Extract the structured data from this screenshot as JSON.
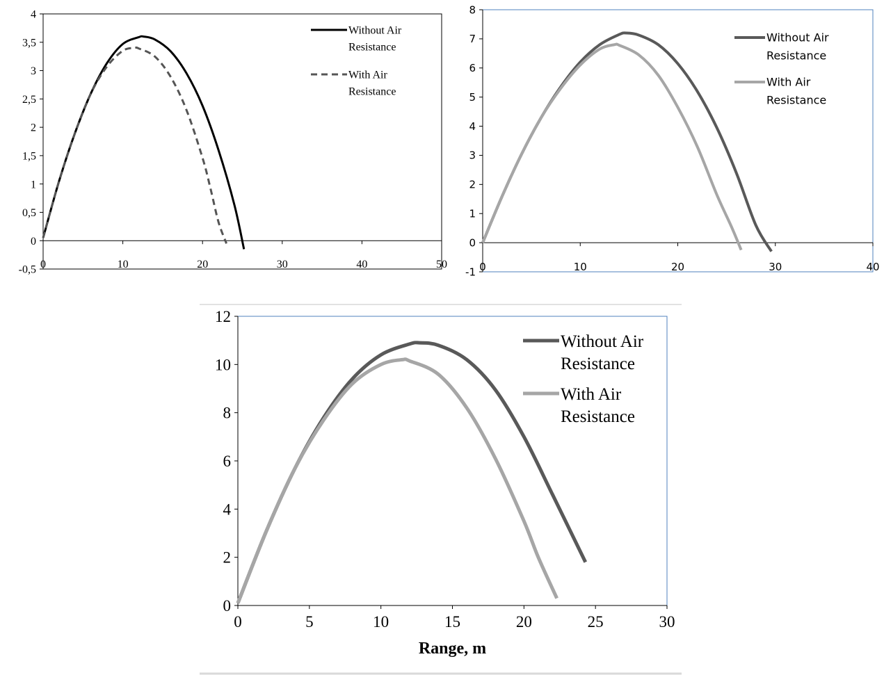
{
  "chart_data": [
    {
      "type": "line",
      "title": "",
      "xlabel": "",
      "ylabel": "",
      "xlim": [
        0,
        50
      ],
      "ylim": [
        -0.5,
        4
      ],
      "x_ticks": [
        0,
        10,
        20,
        30,
        40,
        50
      ],
      "y_ticks": [
        -0.5,
        0,
        0.5,
        1,
        1.5,
        2,
        2.5,
        3,
        3.5,
        4
      ],
      "y_tick_labels": [
        "-0,5",
        "0",
        "0,5",
        "1",
        "1,5",
        "2",
        "2,5",
        "3",
        "3,5",
        "4"
      ],
      "grid": false,
      "legend_position": "top-right",
      "series": [
        {
          "name_lines": [
            "Without Air",
            "Resistance"
          ],
          "color": "#000000",
          "dashed": false,
          "x": [
            0,
            2,
            4,
            6,
            8,
            10,
            12,
            12.6,
            14,
            16,
            18,
            20,
            22,
            24,
            25.2
          ],
          "y": [
            0.05,
            1.05,
            1.9,
            2.6,
            3.13,
            3.47,
            3.59,
            3.6,
            3.55,
            3.34,
            2.95,
            2.38,
            1.6,
            0.63,
            -0.15
          ]
        },
        {
          "name_lines": [
            "With Air",
            "Resistance"
          ],
          "color": "#555555",
          "dashed": true,
          "x": [
            0,
            2,
            4,
            6,
            8,
            10,
            11.5,
            12,
            14,
            16,
            18,
            20,
            21,
            22,
            23
          ],
          "y": [
            0.05,
            1.05,
            1.9,
            2.6,
            3.07,
            3.35,
            3.4,
            3.39,
            3.25,
            2.89,
            2.3,
            1.46,
            0.92,
            0.33,
            -0.05
          ]
        }
      ]
    },
    {
      "type": "line",
      "title": "",
      "xlabel": "",
      "ylabel": "",
      "xlim": [
        0,
        40
      ],
      "ylim": [
        -1,
        8
      ],
      "x_ticks": [
        0,
        10,
        20,
        30,
        40
      ],
      "y_ticks": [
        -1,
        0,
        1,
        2,
        3,
        4,
        5,
        6,
        7,
        8
      ],
      "y_tick_labels": [
        "-1",
        "0",
        "1",
        "2",
        "3",
        "4",
        "5",
        "6",
        "7",
        "8"
      ],
      "grid": false,
      "legend_position": "top-right",
      "series": [
        {
          "name_lines": [
            "Without Air",
            "Resistance"
          ],
          "color": "#595959",
          "dashed": false,
          "x": [
            0,
            2,
            4,
            6,
            8,
            10,
            12,
            14,
            14.7,
            16,
            18,
            20,
            22,
            24,
            26,
            28,
            29.6
          ],
          "y": [
            0,
            1.6,
            3.05,
            4.3,
            5.35,
            6.2,
            6.8,
            7.15,
            7.2,
            7.13,
            6.8,
            6.15,
            5.2,
            3.95,
            2.4,
            0.6,
            -0.3
          ]
        },
        {
          "name_lines": [
            "With Air",
            "Resistance"
          ],
          "color": "#a6a6a6",
          "dashed": false,
          "x": [
            0,
            2,
            4,
            6,
            8,
            10,
            12,
            13.5,
            14,
            16,
            18,
            20,
            22,
            24,
            25.5,
            26.5
          ],
          "y": [
            0,
            1.6,
            3.05,
            4.3,
            5.3,
            6.1,
            6.65,
            6.8,
            6.78,
            6.45,
            5.75,
            4.65,
            3.3,
            1.65,
            0.55,
            -0.25
          ]
        }
      ]
    },
    {
      "type": "line",
      "title": "",
      "xlabel": "Range, m",
      "ylabel": "",
      "xlim": [
        0,
        30
      ],
      "ylim": [
        0,
        12
      ],
      "x_ticks": [
        0,
        5,
        10,
        15,
        20,
        25,
        30
      ],
      "y_ticks": [
        0,
        2,
        4,
        6,
        8,
        10,
        12
      ],
      "y_tick_labels": [
        "0",
        "2",
        "4",
        "6",
        "8",
        "10",
        "12"
      ],
      "grid": false,
      "legend_position": "top-right",
      "series": [
        {
          "name_lines": [
            "Without Air",
            "Resistance"
          ],
          "color": "#595959",
          "dashed": false,
          "x": [
            0,
            2,
            4,
            6,
            8,
            10,
            12,
            12.7,
            14,
            16,
            18,
            20,
            22,
            24.3
          ],
          "y": [
            0.1,
            3.1,
            5.7,
            7.8,
            9.4,
            10.4,
            10.85,
            10.9,
            10.8,
            10.2,
            8.95,
            7.0,
            4.6,
            1.8
          ]
        },
        {
          "name_lines": [
            "With Air",
            "Resistance"
          ],
          "color": "#a6a6a6",
          "dashed": false,
          "x": [
            0,
            2,
            4,
            6,
            8,
            10,
            11.5,
            12,
            14,
            16,
            18,
            20,
            21,
            22.3
          ],
          "y": [
            0.1,
            3.1,
            5.7,
            7.7,
            9.2,
            10.0,
            10.2,
            10.15,
            9.6,
            8.2,
            6.1,
            3.5,
            2.0,
            0.3
          ]
        }
      ]
    }
  ]
}
